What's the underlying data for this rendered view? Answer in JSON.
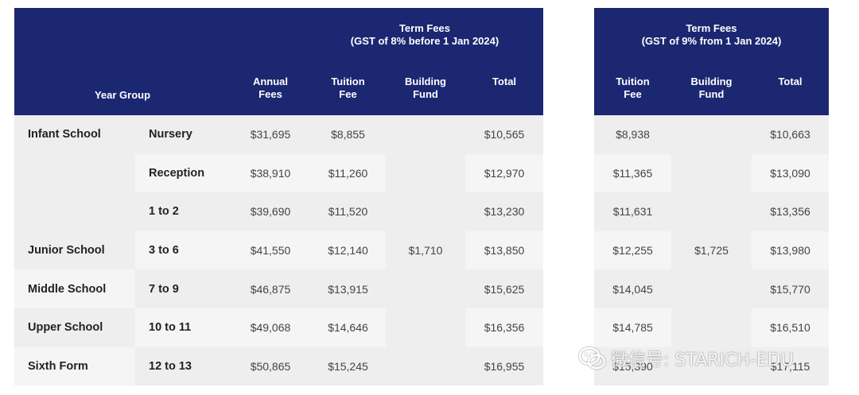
{
  "left_table": {
    "term_header": {
      "line1": "Term Fees",
      "line2": "(GST of 8% before 1 Jan 2024)"
    },
    "year_group_header": "Year Group",
    "annual_header": {
      "line1": "Annual",
      "line2": "Fees"
    },
    "tuition_header": {
      "line1": "Tuition",
      "line2": "Fee"
    },
    "building_header": {
      "line1": "Building",
      "line2": "Fund"
    },
    "total_header": "Total",
    "building_fund_value": "$1,710",
    "rows": [
      {
        "school": "Infant School",
        "year": "Nursery",
        "annual": "$31,695",
        "tuition": "$8,855",
        "total": "$10,565"
      },
      {
        "school": "",
        "year": "Reception",
        "annual": "$38,910",
        "tuition": "$11,260",
        "total": "$12,970"
      },
      {
        "school": "",
        "year": "1 to 2",
        "annual": "$39,690",
        "tuition": "$11,520",
        "total": "$13,230"
      },
      {
        "school": "Junior School",
        "year": "3 to 6",
        "annual": "$41,550",
        "tuition": "$12,140",
        "total": "$13,850"
      },
      {
        "school": "Middle School",
        "year": "7 to 9",
        "annual": "$46,875",
        "tuition": "$13,915",
        "total": "$15,625"
      },
      {
        "school": "Upper School",
        "year": "10 to 11",
        "annual": "$49,068",
        "tuition": "$14,646",
        "total": "$16,356"
      },
      {
        "school": "Sixth Form",
        "year": "12 to 13",
        "annual": "$50,865",
        "tuition": "$15,245",
        "total": "$16,955"
      }
    ]
  },
  "right_table": {
    "term_header": {
      "line1": "Term Fees",
      "line2": "(GST of 9% from 1 Jan 2024)"
    },
    "tuition_header": {
      "line1": "Tuition",
      "line2": "Fee"
    },
    "building_header": {
      "line1": "Building",
      "line2": "Fund"
    },
    "total_header": "Total",
    "building_fund_value": "$1,725",
    "rows": [
      {
        "tuition": "$8,938",
        "total": "$10,663"
      },
      {
        "tuition": "$11,365",
        "total": "$13,090"
      },
      {
        "tuition": "$11,631",
        "total": "$13,356"
      },
      {
        "tuition": "$12,255",
        "total": "$13,980"
      },
      {
        "tuition": "$14,045",
        "total": "$15,770"
      },
      {
        "tuition": "$14,785",
        "total": "$16,510"
      },
      {
        "tuition": "$15,390",
        "total": "$17,115"
      }
    ]
  },
  "watermark": {
    "text": "微信号: STARICH-EDU"
  },
  "colors": {
    "header_bg": "#1b2771",
    "row_bg_dark": "#eeeeee",
    "row_bg_light": "#f5f5f5"
  }
}
